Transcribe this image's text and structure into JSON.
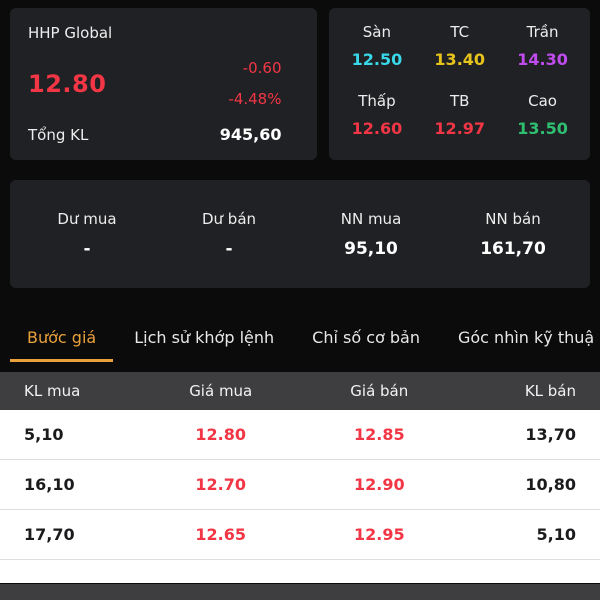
{
  "quote": {
    "symbol": "HHP Global",
    "price": "12.80",
    "change": "-0.60",
    "change_pct": "-4.48%",
    "total_volume_label": "Tổng KL",
    "total_volume": "945,60"
  },
  "stats": {
    "cells": [
      {
        "label": "Sàn",
        "value": "12.50",
        "color": "#38d8e8"
      },
      {
        "label": "TC",
        "value": "13.40",
        "color": "#e7c41c"
      },
      {
        "label": "Trần",
        "value": "14.30",
        "color": "#c04cf0"
      },
      {
        "label": "Thấp",
        "value": "12.60",
        "color": "#f23645"
      },
      {
        "label": "TB",
        "value": "12.97",
        "color": "#f23645"
      },
      {
        "label": "Cao",
        "value": "13.50",
        "color": "#2fbf71"
      }
    ]
  },
  "summary": {
    "cells": [
      {
        "label": "Dư mua",
        "value": "-"
      },
      {
        "label": "Dư bán",
        "value": "-"
      },
      {
        "label": "NN mua",
        "value": "95,10"
      },
      {
        "label": "NN bán",
        "value": "161,70"
      }
    ]
  },
  "tabs": [
    {
      "label": "Bước giá"
    },
    {
      "label": "Lịch sử khớp lệnh"
    },
    {
      "label": "Chỉ số cơ bản"
    },
    {
      "label": "Góc nhìn kỹ thuậ"
    }
  ],
  "order_book": {
    "headers": [
      "KL mua",
      "Giá mua",
      "Giá bán",
      "KL bán"
    ],
    "rows": [
      [
        "5,10",
        "12.80",
        "12.85",
        "13,70"
      ],
      [
        "16,10",
        "12.70",
        "12.90",
        "10,80"
      ],
      [
        "17,70",
        "12.65",
        "12.95",
        "5,10"
      ]
    ]
  },
  "colors": {
    "down_red": "#f23645",
    "tab_active_orange": "#e9a13b"
  }
}
